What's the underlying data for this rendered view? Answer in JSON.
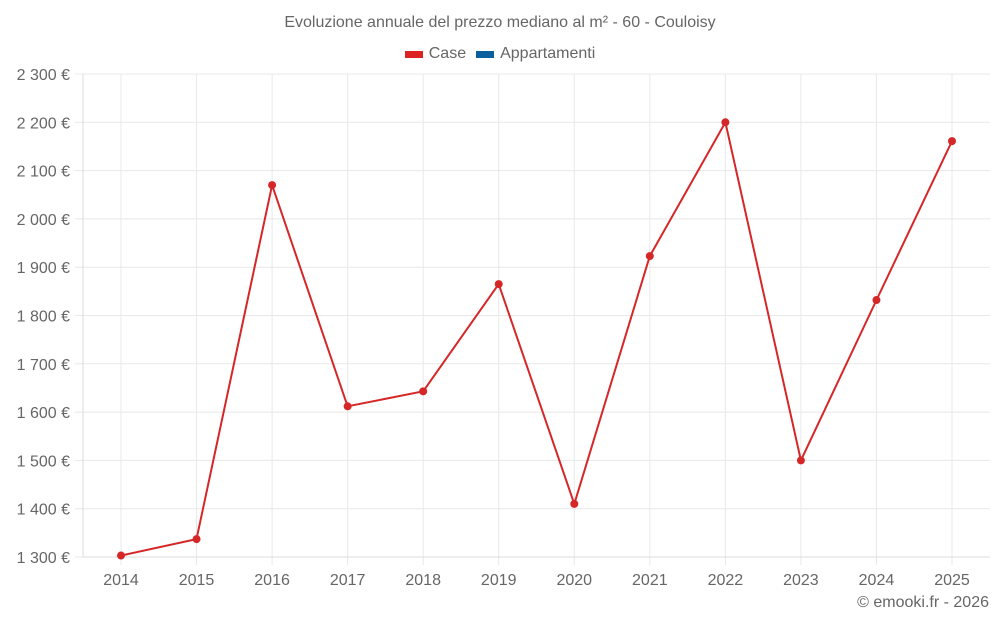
{
  "title": "Evoluzione annuale del prezzo mediano al m² - 60 - Couloisy",
  "legend": [
    {
      "label": "Case",
      "color": "#dd2222"
    },
    {
      "label": "Appartamenti",
      "color": "#0a5f9c"
    }
  ],
  "credit": "© emooki.fr - 2026",
  "colors": {
    "grid": "#e8e8e8",
    "axis_text": "#666666",
    "line": "#d62728"
  },
  "chart_data": {
    "type": "line",
    "title": "Evoluzione annuale del prezzo mediano al m² - 60 - Couloisy",
    "xlabel": "",
    "ylabel": "",
    "categories": [
      "2014",
      "2015",
      "2016",
      "2017",
      "2018",
      "2019",
      "2020",
      "2021",
      "2022",
      "2023",
      "2024",
      "2025"
    ],
    "series": [
      {
        "name": "Case",
        "color": "#dd2222",
        "values": [
          1303,
          1337,
          2070,
          1612,
          1643,
          1865,
          1410,
          1923,
          2200,
          1500,
          1832,
          2161
        ]
      },
      {
        "name": "Appartamenti",
        "color": "#0a5f9c",
        "values": []
      }
    ],
    "ylim": [
      1300,
      2300
    ],
    "yticks": [
      1300,
      1400,
      1500,
      1600,
      1700,
      1800,
      1900,
      2000,
      2100,
      2200,
      2300
    ],
    "ytick_labels": [
      "1 300 €",
      "1 400 €",
      "1 500 €",
      "1 600 €",
      "1 700 €",
      "1 800 €",
      "1 900 €",
      "2 000 €",
      "2 100 €",
      "2 200 €",
      "2 300 €"
    ],
    "grid": true,
    "legend_position": "top"
  }
}
